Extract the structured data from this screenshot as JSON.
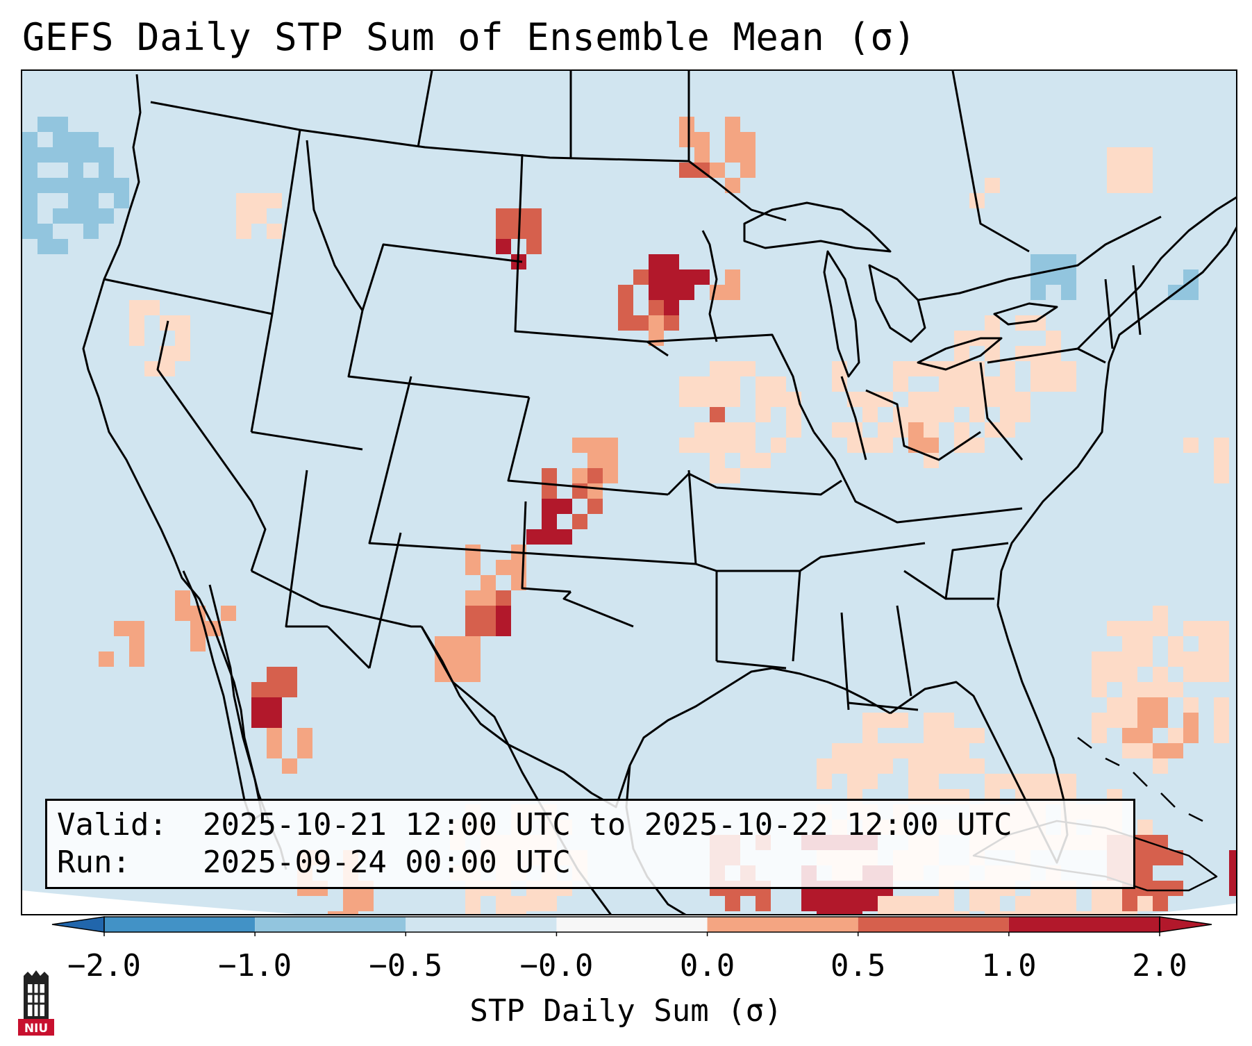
{
  "title": "GEFS Daily STP Sum of Ensemble Mean (σ)",
  "info": {
    "valid_label": "Valid:",
    "valid_value": "2025-10-21 12:00 UTC to 2025-10-22 12:00 UTC",
    "run_label": "Run:",
    "run_value": "2025-09-24 00:00 UTC"
  },
  "colorbar": {
    "label": "STP Daily Sum (σ)",
    "ticks": [
      "−2.0",
      "−1.0",
      "−0.5",
      "−0.0",
      "0.0",
      "0.5",
      "1.0",
      "2.0"
    ],
    "colors": [
      "#4292c6",
      "#92c5de",
      "#d1e5f0",
      "#f7f7f7",
      "#fddbc7",
      "#f4a582",
      "#d6604d",
      "#b2182b"
    ],
    "extend_low_color": "#2166ac",
    "extend_high_color": "#b2182b"
  },
  "map": {
    "background_color": "#d1e5f0",
    "outline_color": "#000000",
    "hotspots": [
      {
        "region": "Nebraska-South Dakota border",
        "level": 2.0
      },
      {
        "region": "Western Kansas",
        "level": 1.0
      },
      {
        "region": "Southeastern Colorado",
        "level": 2.0
      },
      {
        "region": "Eastern New Mexico",
        "level": 1.0
      },
      {
        "region": "Gulf of California",
        "level": 2.0
      },
      {
        "region": "Northeastern Wyoming",
        "level": 1.0
      },
      {
        "region": "Southern Iowa",
        "level": 0.5
      },
      {
        "region": "Ohio",
        "level": 0.5
      },
      {
        "region": "Western North Atlantic",
        "level": 0.5
      },
      {
        "region": "Caribbean",
        "level": 1.0
      }
    ]
  },
  "logo": {
    "text": "NIU"
  }
}
